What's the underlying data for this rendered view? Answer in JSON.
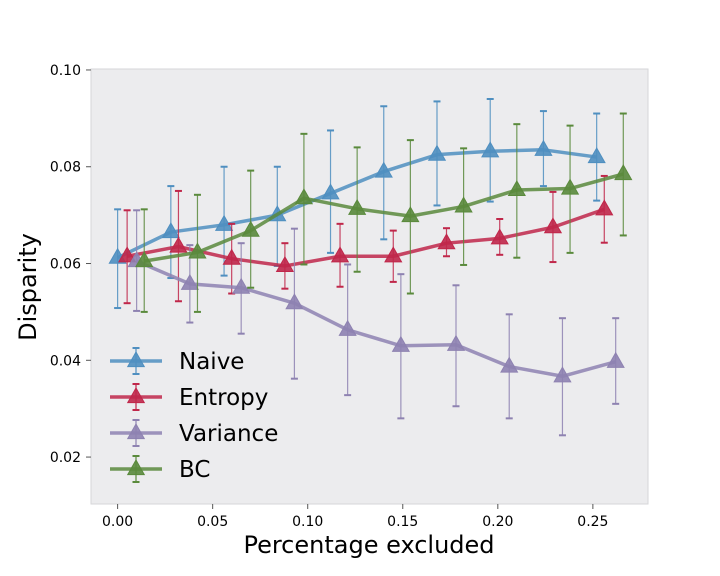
{
  "chart_data": {
    "type": "line",
    "title": "",
    "xlabel": "Percentage excluded",
    "ylabel": "Disparity",
    "xlim": [
      -0.014,
      0.279
    ],
    "ylim": [
      0.0103,
      0.1002
    ],
    "xticks": [
      0.0,
      0.05,
      0.1,
      0.15,
      0.2,
      0.25
    ],
    "xtick_labels": [
      "0.00",
      "0.05",
      "0.10",
      "0.15",
      "0.20",
      "0.25"
    ],
    "yticks": [
      0.02,
      0.04,
      0.06,
      0.08,
      0.1
    ],
    "ytick_labels": [
      "0.02",
      "0.04",
      "0.06",
      "0.08",
      "0.10"
    ],
    "grid": false,
    "legend_position": "lower-left",
    "marker": "triangle",
    "background": "#ececee",
    "series": [
      {
        "name": "Naive",
        "color": "#4f8fc0",
        "x": [
          0.0,
          0.028,
          0.056,
          0.084,
          0.112,
          0.14,
          0.168,
          0.196,
          0.224,
          0.252
        ],
        "y": [
          0.0612,
          0.0665,
          0.068,
          0.07,
          0.0745,
          0.079,
          0.0825,
          0.0832,
          0.0835,
          0.082
        ],
        "yerr_low": [
          0.0508,
          0.057,
          0.0575,
          0.0595,
          0.0622,
          0.065,
          0.072,
          0.0728,
          0.076,
          0.073
        ],
        "yerr_high": [
          0.0712,
          0.076,
          0.08,
          0.08,
          0.0875,
          0.0925,
          0.0935,
          0.094,
          0.0915,
          0.091
        ]
      },
      {
        "name": "Entropy",
        "color": "#c0274a",
        "x": [
          0.005,
          0.032,
          0.06,
          0.088,
          0.117,
          0.145,
          0.173,
          0.201,
          0.229,
          0.256
        ],
        "y": [
          0.0615,
          0.0635,
          0.061,
          0.0595,
          0.0615,
          0.0615,
          0.0642,
          0.0652,
          0.0675,
          0.0712
        ],
        "yerr_low": [
          0.0518,
          0.0522,
          0.0538,
          0.0548,
          0.0552,
          0.0562,
          0.0615,
          0.0618,
          0.0603,
          0.0643
        ],
        "yerr_high": [
          0.071,
          0.075,
          0.0682,
          0.0642,
          0.0682,
          0.0668,
          0.0673,
          0.0692,
          0.0748,
          0.0781
        ]
      },
      {
        "name": "Variance",
        "color": "#8e82b1",
        "x": [
          0.01,
          0.038,
          0.065,
          0.093,
          0.121,
          0.149,
          0.178,
          0.206,
          0.234,
          0.262
        ],
        "y": [
          0.0605,
          0.0558,
          0.055,
          0.0518,
          0.0463,
          0.043,
          0.0432,
          0.0387,
          0.0367,
          0.0397
        ],
        "yerr_low": [
          0.0502,
          0.0478,
          0.0455,
          0.0362,
          0.0328,
          0.028,
          0.0305,
          0.028,
          0.0245,
          0.031
        ],
        "yerr_high": [
          0.071,
          0.0638,
          0.0642,
          0.0672,
          0.0598,
          0.0578,
          0.0555,
          0.0495,
          0.0487,
          0.0487
        ]
      },
      {
        "name": "BC",
        "color": "#5a8a3c",
        "x": [
          0.014,
          0.042,
          0.07,
          0.098,
          0.126,
          0.154,
          0.182,
          0.21,
          0.238,
          0.266
        ],
        "y": [
          0.0605,
          0.0623,
          0.0668,
          0.0735,
          0.0713,
          0.0698,
          0.0718,
          0.0752,
          0.0755,
          0.0785
        ],
        "yerr_low": [
          0.05,
          0.05,
          0.055,
          0.0598,
          0.0583,
          0.0538,
          0.0597,
          0.0612,
          0.0622,
          0.0658
        ],
        "yerr_high": [
          0.0712,
          0.0742,
          0.0792,
          0.0868,
          0.084,
          0.0855,
          0.0838,
          0.0888,
          0.0885,
          0.091
        ]
      }
    ]
  }
}
